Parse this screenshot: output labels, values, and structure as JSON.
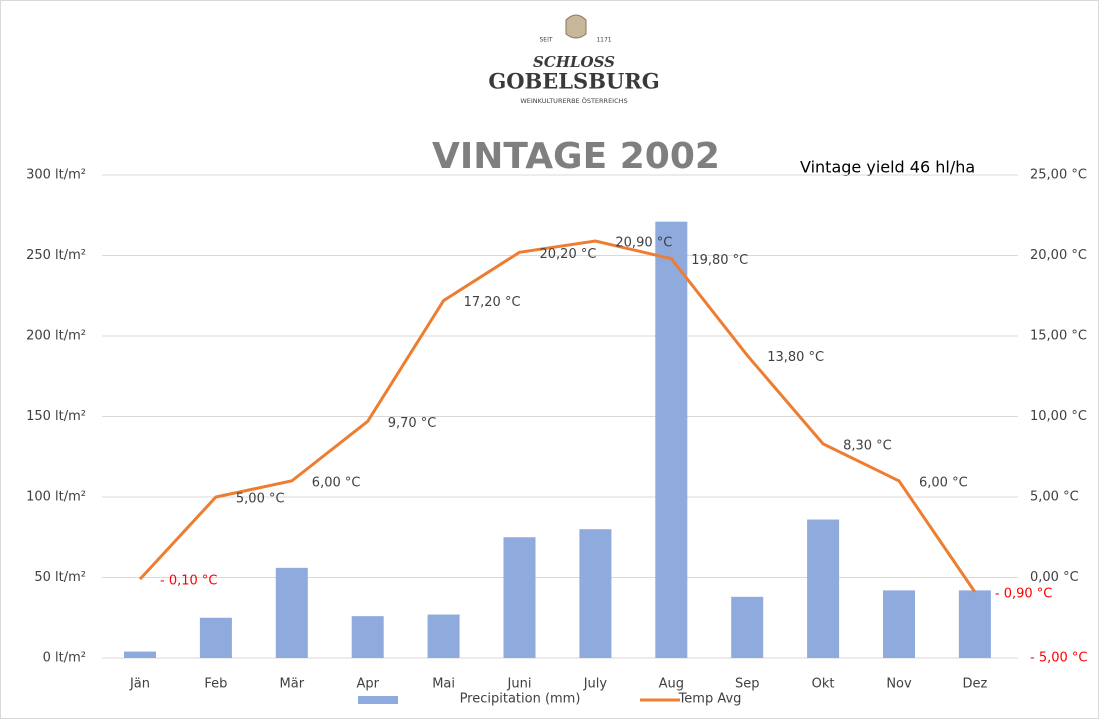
{
  "logo": {
    "since": "SEIT",
    "year": "1171",
    "line1": "SCHLOSS",
    "line2": "GOBELSBURG",
    "tagline": "WEINKULTURERBE ÖSTERREICHS"
  },
  "chart_data": {
    "type": "bar-line",
    "title": "VINTAGE 2002",
    "annotation": "Vintage yield  46 hl/ha",
    "categories": [
      "Jän",
      "Feb",
      "Mär",
      "Apr",
      "Mai",
      "Juni",
      "July",
      "Aug",
      "Sep",
      "Okt",
      "Nov",
      "Dez"
    ],
    "series": [
      {
        "name": "Precipitation (mm)",
        "color": "#8faadc",
        "kind": "bar",
        "values": [
          4,
          25,
          56,
          26,
          27,
          75,
          80,
          271,
          38,
          86,
          42,
          42
        ]
      },
      {
        "name": "Temp Avg",
        "color": "#ed7d31",
        "kind": "line",
        "axis": "y2",
        "values": [
          -0.1,
          5.0,
          6.0,
          9.7,
          17.2,
          20.2,
          20.9,
          19.8,
          13.8,
          8.3,
          6.0,
          -0.9
        ],
        "value_labels": [
          "- 0,10 °C",
          "5,00 °C",
          "6,00 °C",
          "9,70 °C",
          "17,20 °C",
          "20,20 °C",
          "20,90 °C",
          "19,80 °C",
          "13,80 °C",
          "8,30 °C",
          "6,00 °C",
          "- 0,90 °C"
        ]
      }
    ],
    "ylim": [
      0,
      300
    ],
    "yticks": [
      {
        "value": 0,
        "label": "0 lt/m²"
      },
      {
        "value": 50,
        "label": "50 lt/m²"
      },
      {
        "value": 100,
        "label": "100 lt/m²"
      },
      {
        "value": 150,
        "label": "150 lt/m²"
      },
      {
        "value": 200,
        "label": "200 lt/m²"
      },
      {
        "value": 250,
        "label": "250 lt/m²"
      },
      {
        "value": 300,
        "label": "300 lt/m²"
      }
    ],
    "y2lim": [
      -5,
      25
    ],
    "y2ticks": [
      {
        "value": -5,
        "label": "- 5,00 °C"
      },
      {
        "value": 0,
        "label": "0,00 °C"
      },
      {
        "value": 5,
        "label": "5,00 °C"
      },
      {
        "value": 10,
        "label": "10,00 °C"
      },
      {
        "value": 15,
        "label": "15,00 °C"
      },
      {
        "value": 20,
        "label": "20,00 °C"
      },
      {
        "value": 25,
        "label": "25,00 °C"
      }
    ],
    "grid": true,
    "negative_color": "#ff0000"
  }
}
